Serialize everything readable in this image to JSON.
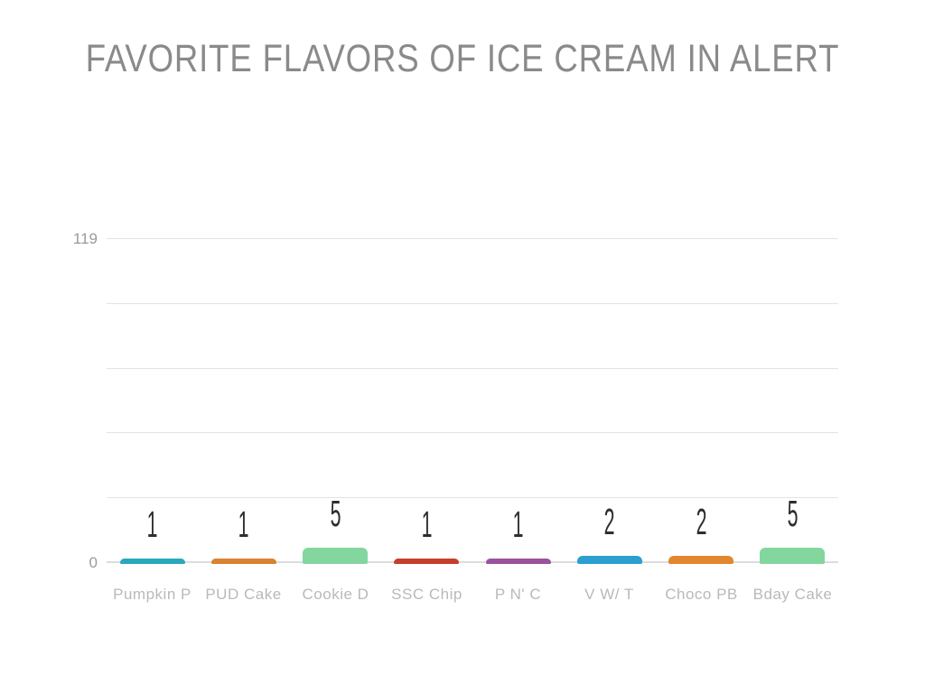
{
  "chart_data": {
    "type": "bar",
    "title": "FAVORITE FLAVORS OF ICE CREAM IN ALERT",
    "categories": [
      "Pumpkin P",
      "PUD Cake",
      "Cookie D",
      "SSC Chip",
      "P N' C",
      "V W/ T",
      "Choco PB",
      "Bday Cake"
    ],
    "values": [
      1,
      1,
      5,
      1,
      1,
      2,
      2,
      5
    ],
    "bar_colors": [
      "#2aa8bd",
      "#d9822f",
      "#82d69e",
      "#c5402a",
      "#9c519e",
      "#2b9fcf",
      "#e2872f",
      "#82d69e"
    ],
    "ylim": [
      0,
      119
    ],
    "yticks_labeled": [
      "119",
      "0"
    ],
    "grid": "horizontal-only",
    "legend": "none",
    "value_labels_shown": true,
    "colors": {
      "title_text": "#8a8a8a",
      "axis_tick_text": "#9a9a9a",
      "category_text": "#b9b9b9",
      "value_label_text": "#2e2e2e",
      "gridline": "#e3e3e3",
      "baseline": "#dcdcdc",
      "background": "#ffffff"
    }
  }
}
